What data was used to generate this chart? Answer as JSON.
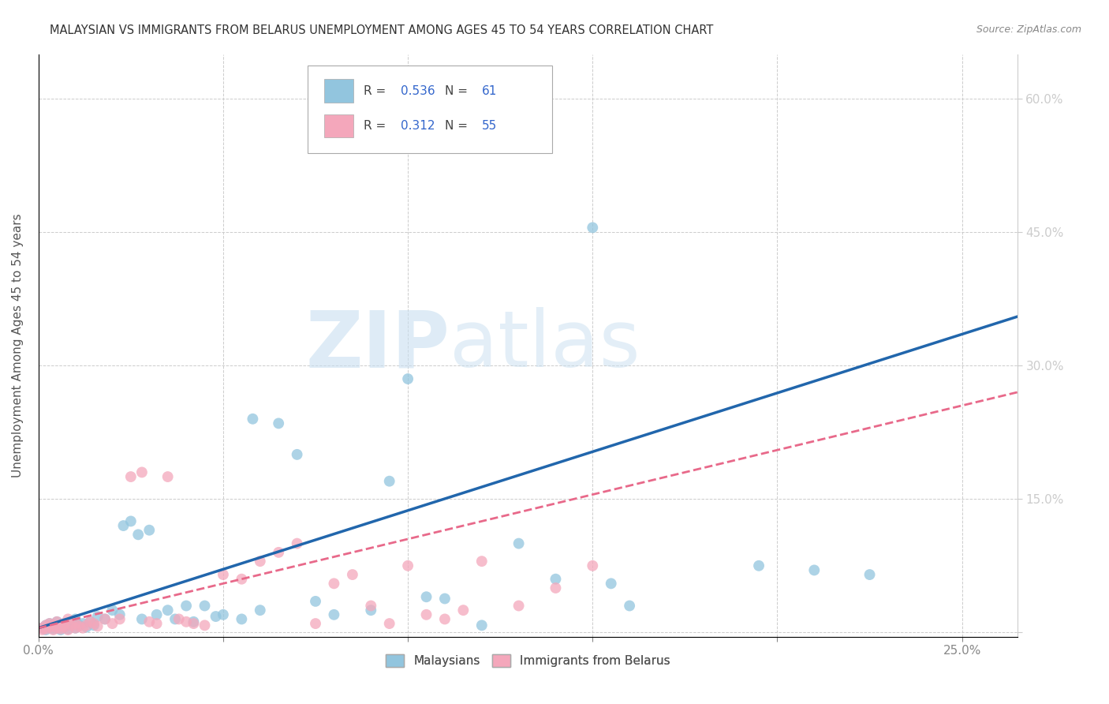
{
  "title": "MALAYSIAN VS IMMIGRANTS FROM BELARUS UNEMPLOYMENT AMONG AGES 45 TO 54 YEARS CORRELATION CHART",
  "source": "Source: ZipAtlas.com",
  "ylabel": "Unemployment Among Ages 45 to 54 years",
  "xlim": [
    0.0,
    0.265
  ],
  "ylim": [
    -0.005,
    0.65
  ],
  "legend_label_blue": "Malaysians",
  "legend_label_pink": "Immigrants from Belarus",
  "R_blue": 0.536,
  "N_blue": 61,
  "R_pink": 0.312,
  "N_pink": 55,
  "blue_color": "#92C5DE",
  "pink_color": "#F4A7BB",
  "blue_line_color": "#2166AC",
  "pink_line_color": "#E8698A",
  "watermark_zip": "ZIP",
  "watermark_atlas": "atlas",
  "blue_scatter_x": [
    0.001,
    0.002,
    0.002,
    0.003,
    0.003,
    0.004,
    0.004,
    0.005,
    0.005,
    0.006,
    0.006,
    0.007,
    0.007,
    0.008,
    0.008,
    0.009,
    0.01,
    0.01,
    0.011,
    0.012,
    0.013,
    0.014,
    0.015,
    0.016,
    0.018,
    0.02,
    0.022,
    0.023,
    0.025,
    0.027,
    0.028,
    0.03,
    0.032,
    0.035,
    0.037,
    0.04,
    0.042,
    0.045,
    0.048,
    0.05,
    0.055,
    0.058,
    0.06,
    0.065,
    0.07,
    0.075,
    0.08,
    0.09,
    0.095,
    0.1,
    0.105,
    0.11,
    0.12,
    0.13,
    0.14,
    0.15,
    0.155,
    0.16,
    0.195,
    0.21,
    0.225
  ],
  "blue_scatter_y": [
    0.005,
    0.008,
    0.003,
    0.006,
    0.01,
    0.004,
    0.008,
    0.005,
    0.012,
    0.007,
    0.003,
    0.01,
    0.006,
    0.004,
    0.008,
    0.012,
    0.005,
    0.015,
    0.008,
    0.01,
    0.006,
    0.012,
    0.008,
    0.018,
    0.015,
    0.025,
    0.02,
    0.12,
    0.125,
    0.11,
    0.015,
    0.115,
    0.02,
    0.025,
    0.015,
    0.03,
    0.012,
    0.03,
    0.018,
    0.02,
    0.015,
    0.24,
    0.025,
    0.235,
    0.2,
    0.035,
    0.02,
    0.025,
    0.17,
    0.285,
    0.04,
    0.038,
    0.008,
    0.1,
    0.06,
    0.455,
    0.055,
    0.03,
    0.075,
    0.07,
    0.065
  ],
  "pink_scatter_x": [
    0.001,
    0.001,
    0.002,
    0.002,
    0.003,
    0.003,
    0.004,
    0.004,
    0.005,
    0.005,
    0.006,
    0.006,
    0.007,
    0.007,
    0.008,
    0.008,
    0.009,
    0.01,
    0.01,
    0.011,
    0.012,
    0.013,
    0.014,
    0.015,
    0.016,
    0.018,
    0.02,
    0.022,
    0.025,
    0.028,
    0.03,
    0.032,
    0.035,
    0.038,
    0.04,
    0.042,
    0.045,
    0.05,
    0.055,
    0.06,
    0.065,
    0.07,
    0.075,
    0.08,
    0.085,
    0.09,
    0.095,
    0.1,
    0.105,
    0.11,
    0.115,
    0.12,
    0.13,
    0.14,
    0.15
  ],
  "pink_scatter_y": [
    0.005,
    0.003,
    0.008,
    0.004,
    0.006,
    0.01,
    0.003,
    0.008,
    0.005,
    0.012,
    0.007,
    0.004,
    0.01,
    0.006,
    0.003,
    0.015,
    0.008,
    0.005,
    0.01,
    0.007,
    0.005,
    0.008,
    0.012,
    0.01,
    0.007,
    0.015,
    0.01,
    0.015,
    0.175,
    0.18,
    0.012,
    0.01,
    0.175,
    0.015,
    0.012,
    0.01,
    0.008,
    0.065,
    0.06,
    0.08,
    0.09,
    0.1,
    0.01,
    0.055,
    0.065,
    0.03,
    0.01,
    0.075,
    0.02,
    0.015,
    0.025,
    0.08,
    0.03,
    0.05,
    0.075
  ]
}
